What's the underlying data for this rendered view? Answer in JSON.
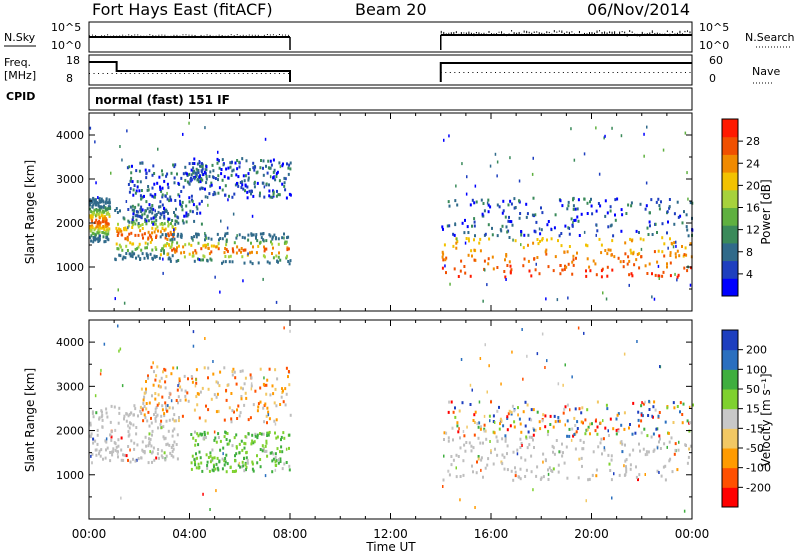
{
  "header": {
    "station": "Fort Hays East (fitACF)",
    "beam": "Beam 20",
    "date": "06/Nov/2014"
  },
  "panels": {
    "noise": {
      "left_label": "N.Sky",
      "right_label": "N.Search",
      "left_ticks": [
        "10^5",
        "10^0"
      ],
      "right_ticks": [
        "10^5",
        "10^0"
      ]
    },
    "freq": {
      "left_label_1": "Freq.",
      "left_label_2": "[MHz]",
      "right_label": "Nave",
      "left_ticks": [
        "18",
        "8"
      ],
      "right_ticks": [
        "60",
        "0"
      ]
    },
    "cpid": {
      "label": "CPID",
      "text": "normal (fast) 151 IF"
    }
  },
  "chart_data": [
    {
      "type": "heatmap",
      "name": "power",
      "ylabel": "Slant Range [km]",
      "ylim": [
        0,
        4500
      ],
      "yticks": [
        1000,
        2000,
        3000,
        4000
      ],
      "xlim": [
        0,
        24
      ],
      "colorbar": {
        "label": "Power [dB]",
        "ticks": [
          4,
          8,
          12,
          16,
          20,
          24,
          28
        ],
        "range": [
          0,
          32
        ]
      },
      "data_gap_hours": [
        8.0,
        14.0
      ],
      "echo_regions": [
        {
          "t": [
            0,
            0.8
          ],
          "range_km": [
            1600,
            2600
          ],
          "power_db": "10-30"
        },
        {
          "t": [
            1.0,
            3.5
          ],
          "range_km": [
            1200,
            2400
          ],
          "power_db": "8-30"
        },
        {
          "t": [
            1.5,
            4.5
          ],
          "range_km": [
            2000,
            3400
          ],
          "power_db": "4-12"
        },
        {
          "t": [
            4.0,
            8.0
          ],
          "range_km": [
            2600,
            3500
          ],
          "power_db": "4-10"
        },
        {
          "t": [
            2.8,
            8.0
          ],
          "range_km": [
            1100,
            1800
          ],
          "power_db": "8-30"
        },
        {
          "t": [
            14.0,
            24.0
          ],
          "range_km": [
            800,
            1700
          ],
          "power_db": "20-32"
        },
        {
          "t": [
            14.0,
            24.0
          ],
          "range_km": [
            1700,
            2600
          ],
          "power_db": "8-24"
        }
      ]
    },
    {
      "type": "heatmap",
      "name": "velocity",
      "ylabel": "Slant Range [km]",
      "ylim": [
        0,
        4500
      ],
      "yticks": [
        1000,
        2000,
        3000,
        4000
      ],
      "xlim": [
        0,
        24
      ],
      "xlabel": "Time UT",
      "xticks": [
        "00:00",
        "04:00",
        "08:00",
        "12:00",
        "16:00",
        "20:00",
        "00:00"
      ],
      "colorbar": {
        "label": "Velocity [m s⁻¹]",
        "ticks": [
          "200",
          "100",
          "50",
          "15",
          "-15",
          "-50",
          "-100",
          "-200"
        ]
      },
      "data_gap_hours": [
        8.0,
        14.0
      ],
      "echo_regions": [
        {
          "t": [
            0,
            3.5
          ],
          "range_km": [
            1300,
            2600
          ],
          "velocity": "ground scatter (-15 to 15)"
        },
        {
          "t": [
            2.0,
            8.0
          ],
          "range_km": [
            2200,
            3500
          ],
          "velocity": "-100 to 50"
        },
        {
          "t": [
            4.0,
            8.0
          ],
          "range_km": [
            1100,
            2000
          ],
          "velocity": "15 to 100"
        },
        {
          "t": [
            14.0,
            24.0
          ],
          "range_km": [
            900,
            1900
          ],
          "velocity": "ground scatter (-15 to 15)"
        },
        {
          "t": [
            14.0,
            24.0
          ],
          "range_km": [
            1900,
            2700
          ],
          "velocity": "-200 to 200 scattered"
        }
      ]
    }
  ],
  "colors": {
    "power_scale": [
      "#0000ff",
      "#1e3fbf",
      "#306a8a",
      "#3a8a5a",
      "#5fb040",
      "#a6d23c",
      "#f2c200",
      "#f08a00",
      "#f05000",
      "#ff1a00"
    ],
    "velocity_scale": [
      "#ff0000",
      "#ff5000",
      "#ff9b00",
      "#f2c864",
      "#c8c8c8",
      "#7fd12f",
      "#3fae3f",
      "#2a6fbf",
      "#1e3fbf"
    ],
    "ground_scatter": "#bebebe"
  }
}
